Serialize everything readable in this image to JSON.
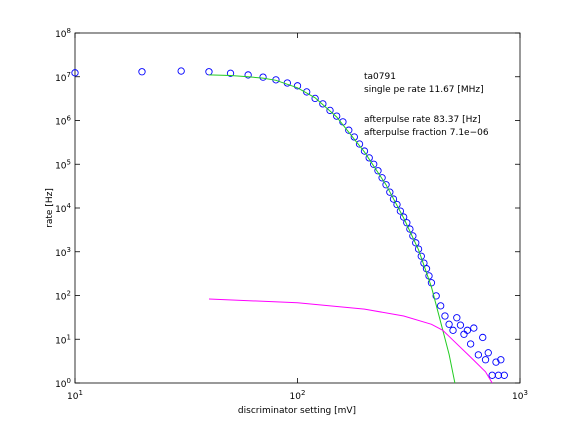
{
  "chart_data": {
    "type": "scatter",
    "xlabel": "discriminator setting [mV]",
    "ylabel": "rate [Hz]",
    "annotations": [
      "ta0791",
      "single pe rate 11.67 [MHz]",
      "afterpulse rate 83.37 [Hz]",
      "afterpulse fraction 7.1e−06"
    ],
    "xscale": "log",
    "yscale": "log",
    "xlim": [
      10,
      1000
    ],
    "ylim": [
      1,
      100000000
    ],
    "xticks": [
      {
        "value": 10,
        "label": "10^1"
      },
      {
        "value": 100,
        "label": "10^2"
      },
      {
        "value": 1000,
        "label": "10^3"
      }
    ],
    "yticks": [
      {
        "value": 1,
        "label": "10^0"
      },
      {
        "value": 10,
        "label": "10^1"
      },
      {
        "value": 100,
        "label": "10^2"
      },
      {
        "value": 1000,
        "label": "10^3"
      },
      {
        "value": 10000,
        "label": "10^4"
      },
      {
        "value": 100000,
        "label": "10^5"
      },
      {
        "value": 1000000,
        "label": "10^6"
      },
      {
        "value": 10000000,
        "label": "10^7"
      },
      {
        "value": 100000000,
        "label": "10^8"
      }
    ],
    "series": [
      {
        "mode": "markers",
        "color": "#0000ff",
        "x": [
          10,
          20,
          30,
          40,
          50,
          60,
          70,
          80,
          90,
          100,
          110,
          120,
          130,
          140,
          150,
          160,
          170,
          180,
          190,
          200,
          210,
          220,
          230,
          240,
          250,
          260,
          270,
          280,
          290,
          300,
          310,
          320,
          330,
          340,
          350,
          360,
          370,
          380,
          390,
          400,
          420,
          440,
          460,
          480,
          500,
          520,
          540,
          560,
          580,
          600,
          620,
          650,
          680,
          700,
          720,
          750,
          780,
          800,
          820,
          850
        ],
        "values": [
          12300000,
          13000000,
          13500000,
          13000000,
          12000000,
          11000000,
          9800000,
          8500000,
          7200000,
          6200000,
          4500000,
          3200000,
          2400000,
          1700000,
          1260000,
          930000,
          600000,
          420000,
          290000,
          200000,
          140000,
          100000,
          71000,
          49000,
          34000,
          23000,
          16000,
          12000,
          8500,
          6200,
          4600,
          3300,
          2300,
          1600,
          1150,
          790,
          550,
          410,
          280,
          195,
          98,
          58,
          34,
          22,
          16,
          31,
          21,
          13,
          16,
          7.8,
          18,
          4.4,
          11,
          3.4,
          4.9,
          1.5,
          3,
          1.5,
          3.4,
          1.5
        ]
      },
      {
        "mode": "lines",
        "color": "#22cc22",
        "x": [
          40,
          50,
          60,
          70,
          80,
          100,
          120,
          150,
          200,
          250,
          300,
          350,
          400,
          450,
          480,
          510
        ],
        "values": [
          11000000,
          10700000,
          10000000,
          9300000,
          8300000,
          5600000,
          3300000,
          1200000,
          190000,
          34000,
          5900,
          1100,
          155,
          16,
          4.5,
          1
        ]
      },
      {
        "mode": "lines",
        "color": "#ff00ff",
        "x": [
          40,
          100,
          200,
          300,
          400,
          450,
          500,
          600,
          700,
          750
        ],
        "values": [
          83,
          68,
          49,
          34,
          22,
          16,
          9.5,
          3.9,
          1.8,
          1
        ]
      }
    ]
  }
}
